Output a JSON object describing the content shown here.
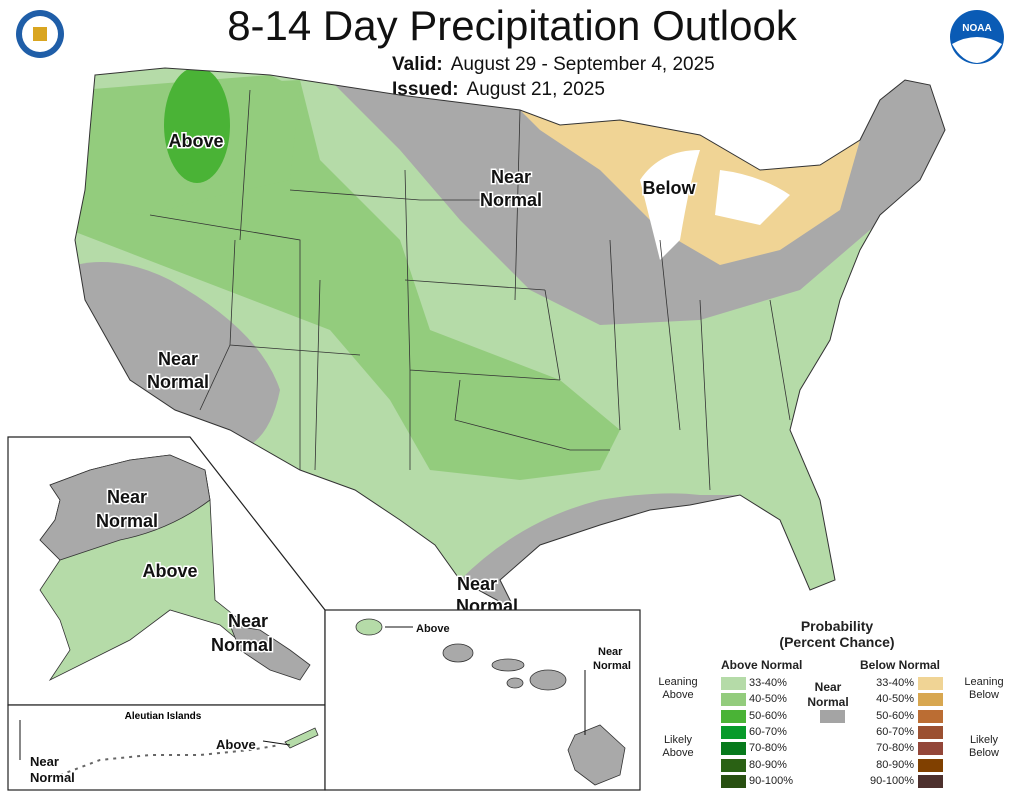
{
  "header": {
    "title": "8-14 Day Precipitation Outlook",
    "valid_label": "Valid:",
    "valid_value": "August 29 - September 4, 2025",
    "issued_label": "Issued:",
    "issued_value": "August 21, 2025",
    "left_logo": "Department of Commerce seal",
    "right_logo": "NOAA"
  },
  "map": {
    "conus_labels": [
      "Above",
      "Near\nNormal",
      "Below",
      "Near\nNormal",
      "Near\nNormal"
    ],
    "labels": {
      "above_nw": "Above",
      "near_normal_north_1": "Near",
      "near_normal_north_2": "Normal",
      "below": "Below",
      "near_normal_ca_1": "Near",
      "near_normal_ca_2": "Normal",
      "near_normal_gulf_1": "Near",
      "near_normal_gulf_2": "Normal",
      "ak_near_1": "Near",
      "ak_near_2": "Normal",
      "ak_above": "Above",
      "ak_se_near_1": "Near",
      "ak_se_near_2": "Normal",
      "aleutian_title": "Aleutian Islands",
      "aleutian_above": "Above",
      "aleutian_near_1": "Near",
      "aleutian_near_2": "Normal",
      "hi_above": "Above",
      "hi_near_1": "Near",
      "hi_near_2": "Normal"
    },
    "colors": {
      "leaning_above": "#b5dba8",
      "above_40_50": "#93cc7d",
      "above_50_60": "#4ab336",
      "near_normal": "#a9a9a9",
      "leaning_below": "#f0d495",
      "water": "#ffffff"
    }
  },
  "legend": {
    "title_1": "Probability",
    "title_2": "(Percent Chance)",
    "above_header": "Above Normal",
    "below_header": "Below Normal",
    "near_header_1": "Near",
    "near_header_2": "Normal",
    "leaning_above_1": "Leaning",
    "leaning_above_2": "Above",
    "likely_above_1": "Likely",
    "likely_above_2": "Above",
    "leaning_below_1": "Leaning",
    "leaning_below_2": "Below",
    "likely_below_1": "Likely",
    "likely_below_2": "Below",
    "near_color": "#a4a4a4",
    "above": [
      {
        "label": "33-40%",
        "color": "#b5dba8"
      },
      {
        "label": "40-50%",
        "color": "#93cc7d"
      },
      {
        "label": "50-60%",
        "color": "#4ab336"
      },
      {
        "label": "60-70%",
        "color": "#079a2a"
      },
      {
        "label": "70-80%",
        "color": "#077a1c"
      },
      {
        "label": "80-90%",
        "color": "#2a6114"
      },
      {
        "label": "90-100%",
        "color": "#285011"
      }
    ],
    "below": [
      {
        "label": "33-40%",
        "color": "#f0d495"
      },
      {
        "label": "40-50%",
        "color": "#d8a750"
      },
      {
        "label": "50-60%",
        "color": "#bb6d33"
      },
      {
        "label": "60-70%",
        "color": "#9b5031"
      },
      {
        "label": "70-80%",
        "color": "#934639"
      },
      {
        "label": "80-90%",
        "color": "#804000"
      },
      {
        "label": "90-100%",
        "color": "#4d302d"
      }
    ]
  }
}
